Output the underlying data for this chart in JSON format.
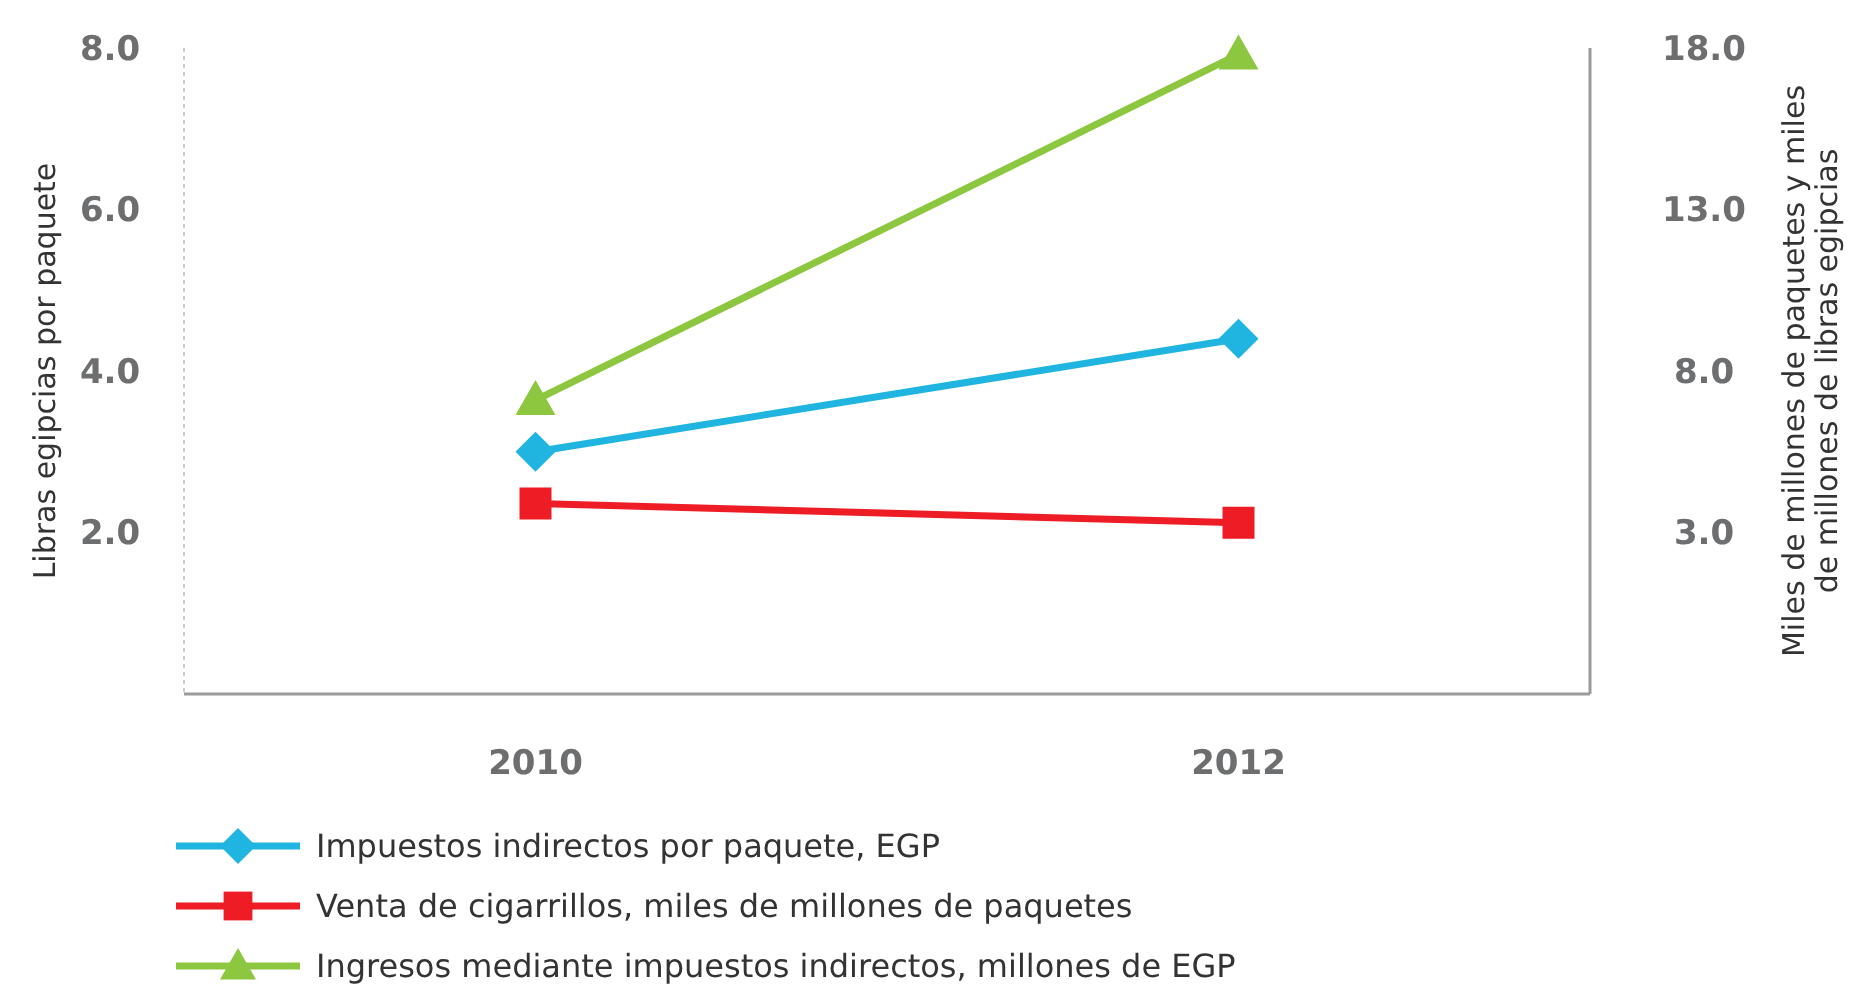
{
  "chart_data": {
    "type": "line",
    "ylabel": "Libras egipcias por paquete",
    "y2label": "Miles de millones de paquetes y miles de millones de libras egipcias",
    "categories": [
      "2010",
      "2012"
    ],
    "ylim": [
      0,
      8
    ],
    "yticks": [
      {
        "value": 2,
        "label": "2.0"
      },
      {
        "value": 4,
        "label": "4.0"
      },
      {
        "value": 6,
        "label": "6.0"
      },
      {
        "value": 8,
        "label": "8.0"
      }
    ],
    "y2lim": [
      -2,
      18
    ],
    "y2ticks": [
      {
        "value": 3,
        "label": "3.0"
      },
      {
        "value": 8,
        "label": "8.0"
      },
      {
        "value": 13,
        "label": "13.0"
      },
      {
        "value": 18,
        "label": "18.0"
      }
    ],
    "legend": "bottom",
    "grid": false,
    "series": [
      {
        "name": "Impuestos indirectos por paquete, EGP",
        "color": "#1fb5e0",
        "values": [
          3.0,
          4.4
        ],
        "marker": "diamond"
      },
      {
        "name": "Venta de cigarrillos, miles de millones de paquetes",
        "color": "#ee1c25",
        "values": [
          3.9,
          3.3
        ],
        "marker": "square",
        "axis": "y2"
      },
      {
        "name": "Ingresos mediante impuestos indirectos, millones de EGP",
        "color": "#8dc63f",
        "values": [
          7.1,
          17.8
        ],
        "marker": "triangle",
        "axis": "y2"
      }
    ]
  }
}
